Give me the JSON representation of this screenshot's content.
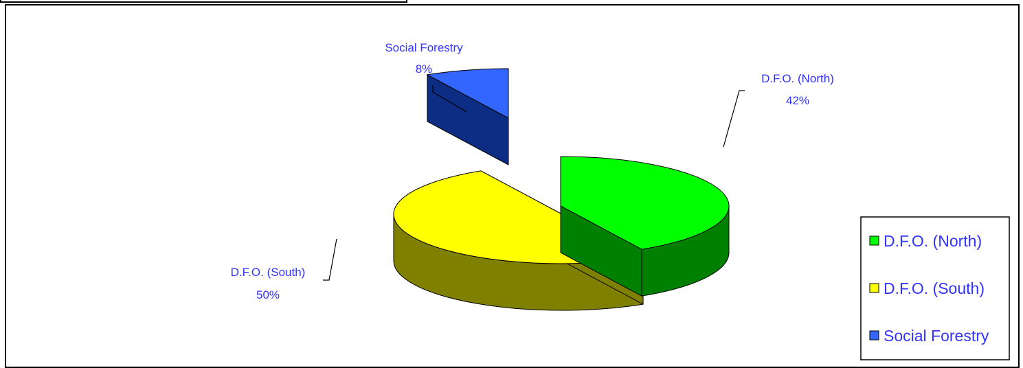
{
  "chart_data": {
    "type": "pie",
    "variant": "3d-exploded",
    "slices": [
      {
        "label": "D.F.O. (North)",
        "value": 42,
        "pct_label": "42%",
        "top_color": "#00ff00",
        "side_color": "#008000"
      },
      {
        "label": "D.F.O. (South)",
        "value": 50,
        "pct_label": "50%",
        "top_color": "#ffff00",
        "side_color": "#808000"
      },
      {
        "label": "Social Forestry",
        "value": 8,
        "pct_label": "8%",
        "top_color": "#3366ff",
        "side_color": "#0c2d83"
      }
    ],
    "legend": {
      "placement": "right",
      "entries": [
        "D.F.O. (North)",
        "D.F.O. (South)",
        "Social Forestry"
      ]
    },
    "label_color": "#3333ff"
  }
}
